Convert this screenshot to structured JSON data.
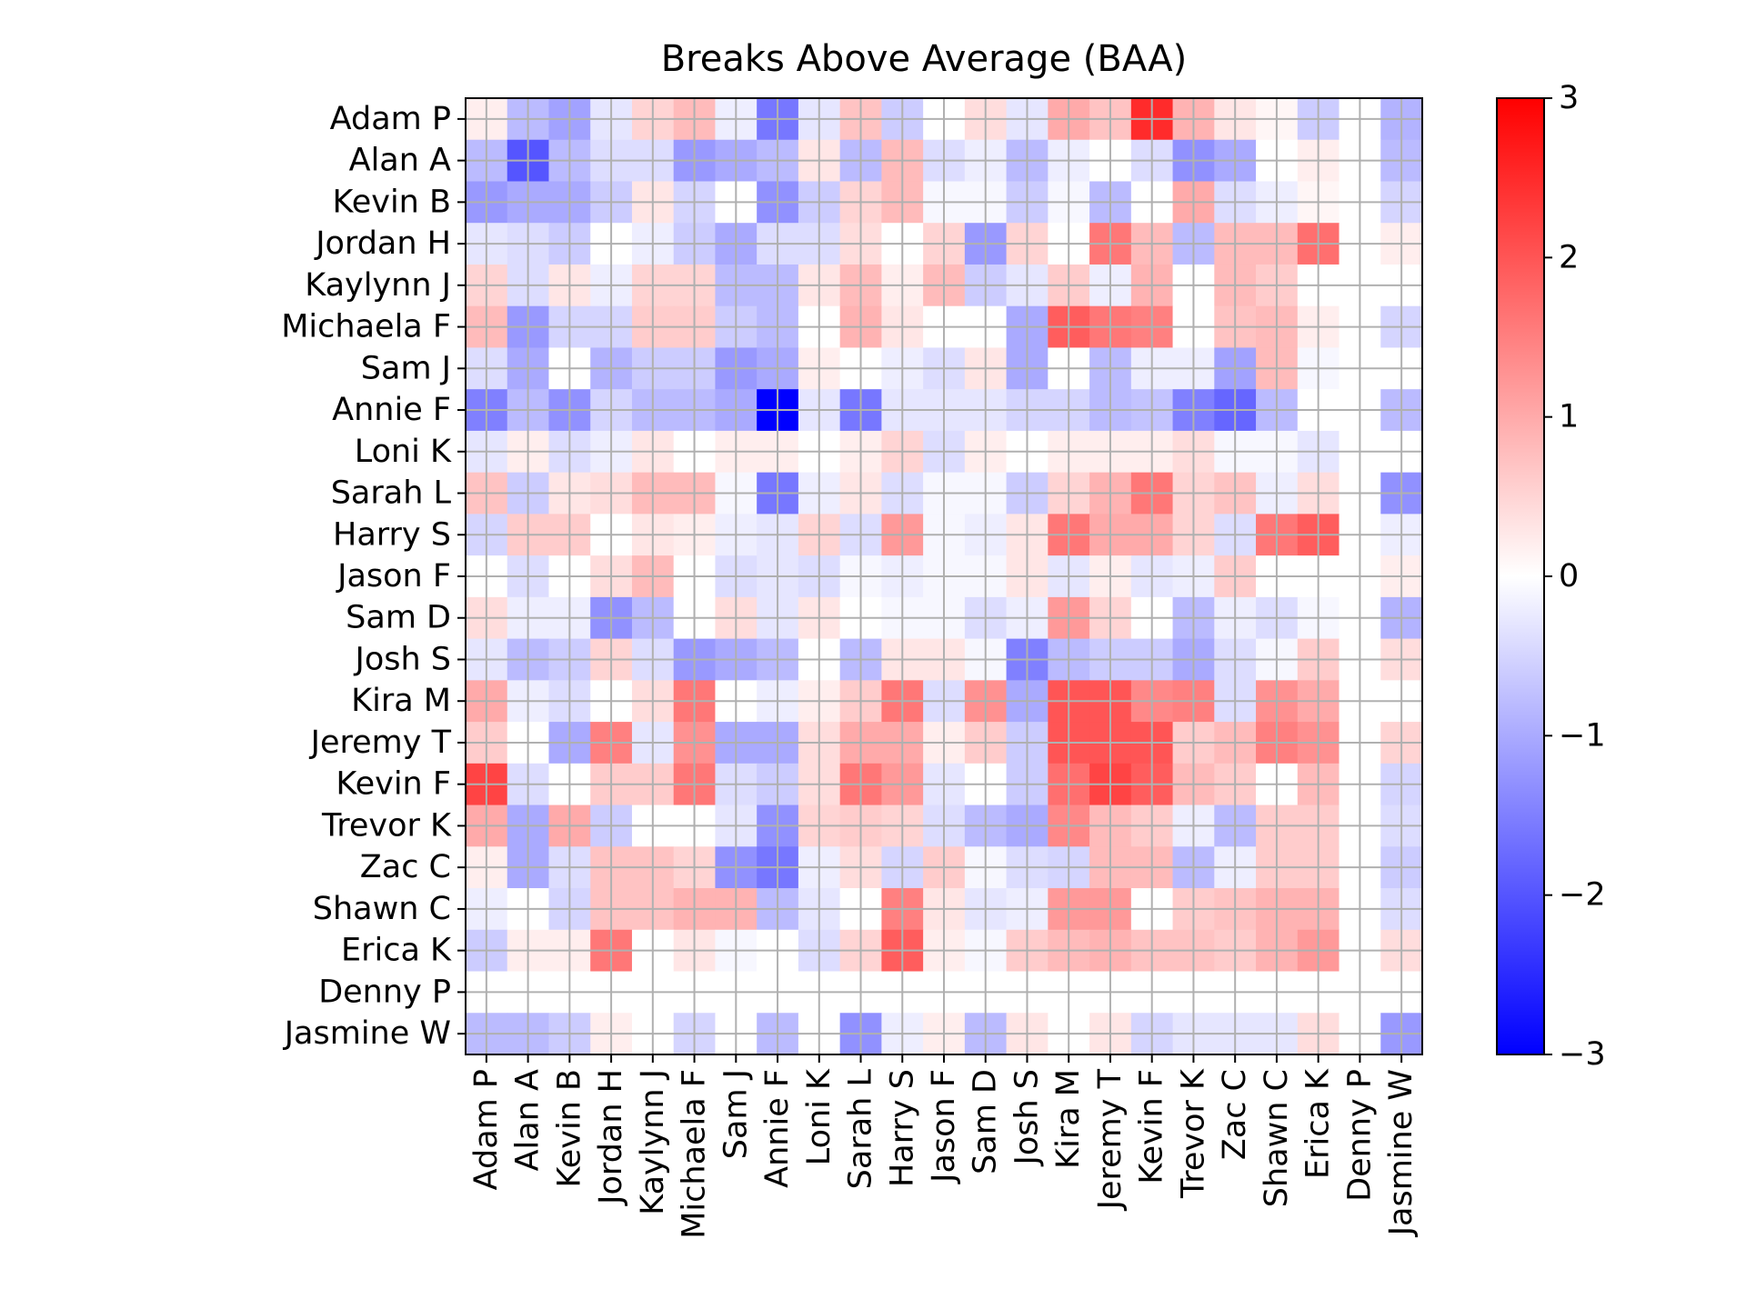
{
  "chart_data": {
    "type": "heatmap",
    "title": "Breaks Above Average (BAA)",
    "labels": [
      "Adam P",
      "Alan A",
      "Kevin B",
      "Jordan H",
      "Kaylynn J",
      "Michaela F",
      "Sam J",
      "Annie F",
      "Loni K",
      "Sarah L",
      "Harry S",
      "Jason F",
      "Sam D",
      "Josh S",
      "Kira M",
      "Jeremy T",
      "Kevin F",
      "Trevor K",
      "Zac C",
      "Shawn C",
      "Erica K",
      "Denny P",
      "Jasmine W"
    ],
    "row_labels_ref": "labels",
    "col_labels_ref": "labels",
    "colorscale": "bwr",
    "vmin": -3,
    "vmax": 3,
    "colorbar_ticks": [
      "3",
      "2",
      "1",
      "0",
      "−1",
      "−2",
      "−3"
    ],
    "colorbar_tick_values": [
      3,
      2,
      1,
      0,
      -1,
      -2,
      -3
    ],
    "grid": true,
    "values": [
      [
        0.2,
        -0.8,
        -1.1,
        -0.3,
        0.5,
        0.8,
        -0.2,
        -1.6,
        -0.3,
        0.7,
        -0.6,
        0.0,
        0.4,
        -0.3,
        1.0,
        0.7,
        2.5,
        0.9,
        0.3,
        0.1,
        -0.6,
        0.0,
        -0.9
      ],
      [
        -0.8,
        -2.0,
        -0.8,
        -0.4,
        -0.4,
        -1.2,
        -1.0,
        -0.8,
        0.3,
        -0.8,
        0.8,
        -0.4,
        -0.2,
        -0.8,
        -0.2,
        0.0,
        -0.4,
        -1.3,
        -1.0,
        0.0,
        0.2,
        0.0,
        -0.8
      ],
      [
        -1.2,
        -1.0,
        -1.0,
        -0.6,
        0.3,
        -0.5,
        0.0,
        -1.3,
        -0.6,
        0.5,
        0.8,
        -0.1,
        -0.1,
        -0.6,
        -0.1,
        -0.8,
        0.0,
        1.0,
        -0.4,
        -0.2,
        0.1,
        0.0,
        -0.5
      ],
      [
        -0.3,
        -0.4,
        -0.6,
        0.0,
        -0.2,
        -0.6,
        -1.0,
        -0.4,
        -0.4,
        0.4,
        0.0,
        0.5,
        -1.2,
        0.5,
        0.0,
        1.6,
        0.8,
        -0.8,
        0.8,
        0.8,
        1.7,
        0.0,
        0.2
      ],
      [
        0.5,
        -0.4,
        0.3,
        -0.2,
        0.5,
        0.5,
        -0.8,
        -0.8,
        0.3,
        0.8,
        0.2,
        0.8,
        -0.6,
        -0.3,
        0.6,
        -0.2,
        0.9,
        0.0,
        0.8,
        0.6,
        0.0,
        0.0,
        0.0
      ],
      [
        0.8,
        -1.2,
        -0.5,
        -0.5,
        0.6,
        0.6,
        -0.6,
        -0.8,
        0.0,
        0.9,
        0.3,
        0.0,
        0.0,
        -1.0,
        1.9,
        1.6,
        1.5,
        0.0,
        0.7,
        0.8,
        0.2,
        0.0,
        -0.5
      ],
      [
        -0.4,
        -1.0,
        0.0,
        -0.9,
        -0.6,
        -0.6,
        -1.2,
        -1.0,
        0.2,
        0.0,
        -0.2,
        -0.4,
        0.3,
        -1.0,
        0.0,
        -0.8,
        -0.2,
        -0.2,
        -1.1,
        0.8,
        -0.1,
        0.0,
        0.0
      ],
      [
        -1.5,
        -0.8,
        -1.3,
        -0.5,
        -0.8,
        -0.8,
        -1.0,
        -3.0,
        -0.3,
        -1.6,
        -0.3,
        -0.3,
        -0.3,
        -0.5,
        -0.5,
        -0.8,
        -0.7,
        -1.5,
        -1.8,
        -0.8,
        0.0,
        0.0,
        -0.8
      ],
      [
        -0.3,
        0.2,
        -0.4,
        -0.2,
        0.3,
        0.0,
        0.2,
        0.2,
        0.0,
        0.2,
        0.5,
        -0.4,
        0.2,
        0.0,
        0.2,
        0.2,
        0.2,
        0.4,
        -0.1,
        -0.1,
        -0.3,
        0.0,
        0.0
      ],
      [
        0.7,
        -0.6,
        0.3,
        0.4,
        0.8,
        0.8,
        -0.1,
        -1.6,
        -0.2,
        0.3,
        -0.4,
        -0.1,
        -0.1,
        -0.6,
        0.5,
        0.9,
        1.6,
        0.5,
        0.7,
        -0.2,
        0.4,
        0.0,
        -1.3
      ],
      [
        -0.5,
        0.6,
        0.6,
        0.0,
        0.3,
        0.2,
        -0.2,
        -0.3,
        0.5,
        -0.4,
        1.2,
        -0.1,
        -0.2,
        0.3,
        1.6,
        1.0,
        1.0,
        0.5,
        -0.4,
        1.6,
        1.9,
        0.0,
        -0.2
      ],
      [
        0.0,
        -0.4,
        0.0,
        0.4,
        0.8,
        0.0,
        -0.4,
        -0.3,
        -0.4,
        -0.1,
        -0.2,
        -0.1,
        -0.1,
        0.3,
        -0.3,
        0.2,
        -0.3,
        -0.2,
        0.6,
        0.0,
        0.0,
        0.0,
        0.2
      ],
      [
        0.4,
        -0.2,
        -0.2,
        -1.3,
        -0.8,
        0.0,
        0.4,
        -0.3,
        0.3,
        0.0,
        -0.1,
        -0.1,
        -0.4,
        -0.2,
        1.2,
        0.5,
        0.0,
        -0.8,
        -0.2,
        -0.4,
        -0.1,
        0.0,
        -0.9
      ],
      [
        -0.3,
        -0.8,
        -0.6,
        0.5,
        -0.4,
        -1.2,
        -1.0,
        -0.8,
        0.0,
        -0.8,
        0.3,
        0.3,
        -0.1,
        -1.5,
        -0.8,
        -0.6,
        -0.6,
        -1.0,
        -0.4,
        -0.1,
        0.6,
        0.0,
        0.4
      ],
      [
        1.0,
        -0.2,
        -0.4,
        0.0,
        0.4,
        1.6,
        0.0,
        -0.2,
        0.2,
        0.6,
        1.6,
        -0.4,
        1.3,
        -1.0,
        2.0,
        2.0,
        1.4,
        1.5,
        -0.4,
        1.3,
        1.0,
        0.0,
        0.0
      ],
      [
        0.6,
        0.0,
        -1.0,
        1.5,
        -0.3,
        1.3,
        -1.0,
        -1.0,
        0.4,
        1.0,
        1.0,
        0.2,
        0.6,
        -0.6,
        2.0,
        2.0,
        2.0,
        0.6,
        0.8,
        1.5,
        1.3,
        0.0,
        0.5
      ],
      [
        2.2,
        -0.4,
        0.0,
        0.6,
        0.6,
        1.6,
        -0.4,
        -0.6,
        0.4,
        1.6,
        1.2,
        -0.3,
        0.0,
        -0.6,
        1.7,
        2.2,
        1.9,
        0.8,
        0.6,
        0.0,
        0.8,
        0.0,
        -0.5
      ],
      [
        1.0,
        -1.0,
        1.0,
        -0.6,
        0.0,
        0.0,
        -0.3,
        -1.3,
        0.5,
        0.6,
        0.5,
        -0.4,
        -0.8,
        -1.0,
        1.4,
        0.8,
        0.6,
        -0.2,
        -0.8,
        0.6,
        0.6,
        0.0,
        -0.4
      ],
      [
        0.2,
        -1.0,
        -0.4,
        0.7,
        0.7,
        0.5,
        -1.3,
        -1.6,
        -0.2,
        0.4,
        -0.5,
        0.6,
        -0.1,
        -0.4,
        -0.5,
        0.8,
        0.8,
        -0.8,
        -0.2,
        0.6,
        0.6,
        0.0,
        -0.6
      ],
      [
        -0.2,
        0.0,
        -0.5,
        0.7,
        0.7,
        0.9,
        0.9,
        -0.8,
        -0.3,
        0.0,
        1.5,
        0.3,
        -0.3,
        -0.2,
        1.2,
        1.2,
        0.0,
        0.6,
        0.7,
        0.9,
        0.9,
        0.0,
        -0.4
      ],
      [
        -0.6,
        0.2,
        0.2,
        1.6,
        0.0,
        0.3,
        -0.1,
        0.0,
        -0.4,
        0.5,
        1.9,
        0.2,
        -0.1,
        0.6,
        0.8,
        0.9,
        0.7,
        0.7,
        0.6,
        0.9,
        1.2,
        0.0,
        0.4
      ],
      [
        0.0,
        0.0,
        0.0,
        0.0,
        0.0,
        0.0,
        0.0,
        0.0,
        0.0,
        0.0,
        0.0,
        0.0,
        0.0,
        0.0,
        0.0,
        0.0,
        0.0,
        0.0,
        0.0,
        0.0,
        0.0,
        0.0,
        0.0
      ],
      [
        -0.8,
        -0.8,
        -0.6,
        0.2,
        0.0,
        -0.5,
        0.0,
        -0.8,
        0.0,
        -1.3,
        -0.2,
        0.2,
        -0.8,
        0.3,
        0.0,
        0.3,
        -0.5,
        -0.3,
        -0.3,
        -0.3,
        0.4,
        0.0,
        -1.2
      ]
    ]
  }
}
